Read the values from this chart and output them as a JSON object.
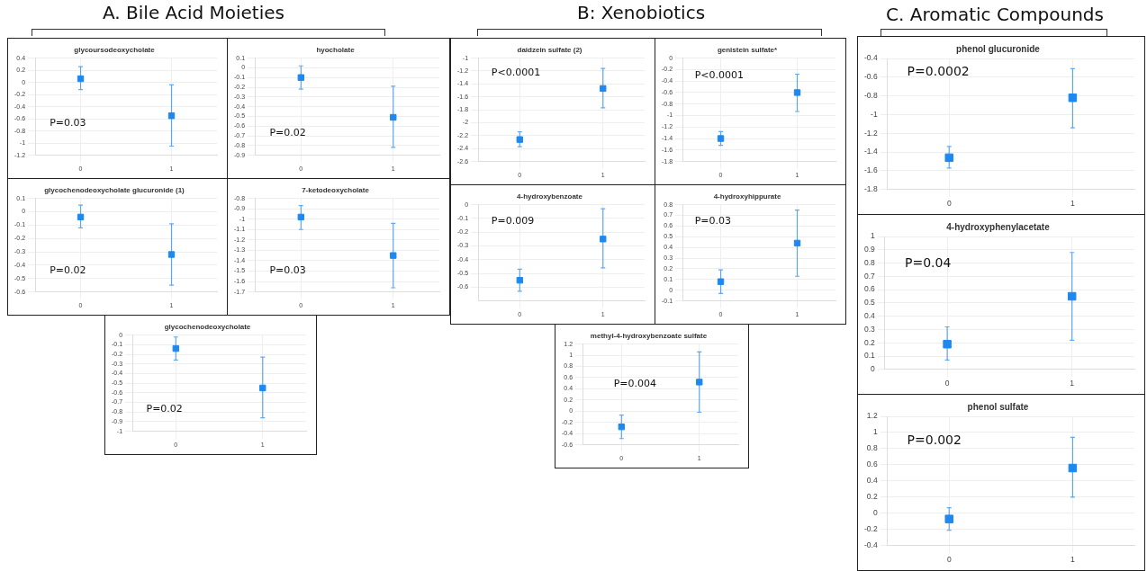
{
  "chart_data": [
    {
      "type": "scatter",
      "title": "glycoursodeoxycholate",
      "categories": [
        "0",
        "1"
      ],
      "ylim": [
        -1.2,
        0.4
      ],
      "yticks": [
        -1.2,
        -1,
        -0.8,
        -0.6,
        -0.4,
        -0.2,
        0,
        0.2,
        0.4
      ],
      "series": [
        {
          "color": "#1e88f0",
          "values": [
            0.06,
            -0.55
          ],
          "errors": [
            [
              -0.12,
              0.26
            ],
            [
              -1.05,
              -0.04
            ]
          ]
        }
      ],
      "marker": "square",
      "grid": true,
      "legend": false,
      "annotations": [
        "P=0.03",
        "A. Bile Acid Moieties"
      ]
    },
    {
      "type": "scatter",
      "title": "hyocholate",
      "categories": [
        "0",
        "1"
      ],
      "ylim": [
        -0.9,
        0.1
      ],
      "yticks": [
        -0.9,
        -0.8,
        -0.7,
        -0.6,
        -0.5,
        -0.4,
        -0.3,
        -0.2,
        -0.1,
        0,
        0.1
      ],
      "series": [
        {
          "color": "#1e88f0",
          "values": [
            -0.1,
            -0.51
          ],
          "errors": [
            [
              -0.22,
              0.02
            ],
            [
              -0.82,
              -0.19
            ]
          ]
        }
      ],
      "marker": "square",
      "grid": true,
      "legend": false,
      "annotations": [
        "P=0.02"
      ]
    },
    {
      "type": "scatter",
      "title": "glycochenodeoxycholate glucuronide (1)",
      "categories": [
        "0",
        "1"
      ],
      "ylim": [
        -0.6,
        0.1
      ],
      "yticks": [
        -0.6,
        -0.5,
        -0.4,
        -0.3,
        -0.2,
        -0.1,
        0,
        0.1
      ],
      "series": [
        {
          "color": "#1e88f0",
          "values": [
            -0.04,
            -0.32
          ],
          "errors": [
            [
              -0.12,
              0.05
            ],
            [
              -0.55,
              -0.09
            ]
          ]
        }
      ],
      "marker": "square",
      "grid": true,
      "legend": false,
      "annotations": [
        "P=0.02"
      ]
    },
    {
      "type": "scatter",
      "title": "7-ketodeoxycholate",
      "categories": [
        "0",
        "1"
      ],
      "ylim": [
        -1.7,
        -0.8
      ],
      "yticks": [
        -1.7,
        -1.6,
        -1.5,
        -1.4,
        -1.3,
        -1.2,
        -1.1,
        -1,
        -0.9,
        -0.8
      ],
      "series": [
        {
          "color": "#1e88f0",
          "values": [
            -0.98,
            -1.35
          ],
          "errors": [
            [
              -1.1,
              -0.87
            ],
            [
              -1.66,
              -1.04
            ]
          ]
        }
      ],
      "marker": "square",
      "grid": true,
      "legend": false,
      "annotations": [
        "P=0.03"
      ]
    },
    {
      "type": "scatter",
      "title": "glycochenodeoxycholate",
      "categories": [
        "0",
        "1"
      ],
      "ylim": [
        -1,
        0
      ],
      "yticks": [
        -1,
        -0.9,
        -0.8,
        -0.7,
        -0.6,
        -0.5,
        -0.4,
        -0.3,
        -0.2,
        -0.1,
        0
      ],
      "series": [
        {
          "color": "#1e88f0",
          "values": [
            -0.14,
            -0.55
          ],
          "errors": [
            [
              -0.26,
              -0.02
            ],
            [
              -0.86,
              -0.23
            ]
          ]
        }
      ],
      "marker": "square",
      "grid": true,
      "legend": false,
      "annotations": [
        "P=0.02"
      ]
    },
    {
      "type": "scatter",
      "title": "daidzein sulfate (2)",
      "categories": [
        "0",
        "1"
      ],
      "ylim": [
        -2.6,
        -1
      ],
      "yticks": [
        -2.6,
        -2.4,
        -2.2,
        -2,
        -1.8,
        -1.6,
        -1.4,
        -1.2,
        -1
      ],
      "series": [
        {
          "color": "#1e88f0",
          "values": [
            -2.26,
            -1.47
          ],
          "errors": [
            [
              -2.37,
              -2.14
            ],
            [
              -1.77,
              -1.16
            ]
          ]
        }
      ],
      "marker": "square",
      "grid": true,
      "legend": false,
      "annotations": [
        "P<0.0001",
        "B: Xenobiotics"
      ]
    },
    {
      "type": "scatter",
      "title": "genistein sulfate*",
      "categories": [
        "0",
        "1"
      ],
      "ylim": [
        -1.8,
        0
      ],
      "yticks": [
        -1.8,
        -1.6,
        -1.4,
        -1.2,
        -1,
        -0.8,
        -0.6,
        -0.4,
        -0.2,
        0
      ],
      "series": [
        {
          "color": "#1e88f0",
          "values": [
            -1.4,
            -0.6
          ],
          "errors": [
            [
              -1.52,
              -1.28
            ],
            [
              -0.93,
              -0.28
            ]
          ]
        }
      ],
      "marker": "square",
      "grid": true,
      "legend": false,
      "annotations": [
        "P<0.0001"
      ]
    },
    {
      "type": "scatter",
      "title": "4-hydroxybenzoate",
      "categories": [
        "0",
        "1"
      ],
      "ylim": [
        -0.7,
        0
      ],
      "yticks": [
        -0.6,
        -0.5,
        -0.4,
        -0.3,
        -0.2,
        -0.1,
        0
      ],
      "series": [
        {
          "color": "#1e88f0",
          "values": [
            -0.55,
            -0.25
          ],
          "errors": [
            [
              -0.63,
              -0.47
            ],
            [
              -0.46,
              -0.03
            ]
          ]
        }
      ],
      "marker": "square",
      "grid": true,
      "legend": false,
      "annotations": [
        "P=0.009"
      ]
    },
    {
      "type": "scatter",
      "title": "4-hydroxyhippurate",
      "categories": [
        "0",
        "1"
      ],
      "ylim": [
        -0.1,
        0.8
      ],
      "yticks": [
        -0.1,
        0,
        0.1,
        0.2,
        0.3,
        0.4,
        0.5,
        0.6,
        0.7,
        0.8
      ],
      "series": [
        {
          "color": "#1e88f0",
          "values": [
            0.08,
            0.44
          ],
          "errors": [
            [
              -0.03,
              0.19
            ],
            [
              0.13,
              0.75
            ]
          ]
        }
      ],
      "marker": "square",
      "grid": true,
      "legend": false,
      "annotations": [
        "P=0.03"
      ]
    },
    {
      "type": "scatter",
      "title": "methyl-4-hydroxybenzoate sulfate",
      "categories": [
        "0",
        "1"
      ],
      "ylim": [
        -0.6,
        1.2
      ],
      "yticks": [
        -0.6,
        -0.4,
        -0.2,
        0,
        0.2,
        0.4,
        0.6,
        0.8,
        1,
        1.2
      ],
      "series": [
        {
          "color": "#1e88f0",
          "values": [
            -0.28,
            0.52
          ],
          "errors": [
            [
              -0.49,
              -0.07
            ],
            [
              -0.02,
              1.06
            ]
          ]
        }
      ],
      "marker": "square",
      "grid": true,
      "legend": false,
      "annotations": [
        "P=0.004"
      ]
    },
    {
      "type": "scatter",
      "title": "phenol glucuronide",
      "categories": [
        "0",
        "1"
      ],
      "ylim": [
        -1.8,
        -0.4
      ],
      "yticks": [
        -1.8,
        -1.6,
        -1.4,
        -1.2,
        -1,
        -0.8,
        -0.6,
        -0.4
      ],
      "series": [
        {
          "color": "#1e88f0",
          "values": [
            -1.46,
            -0.82
          ],
          "errors": [
            [
              -1.57,
              -1.34
            ],
            [
              -1.14,
              -0.51
            ]
          ]
        }
      ],
      "marker": "square",
      "grid": true,
      "legend": false,
      "annotations": [
        "P=0.0002",
        "C. Aromatic Compounds"
      ]
    },
    {
      "type": "scatter",
      "title": "4-hydroxyphenylacetate",
      "categories": [
        "0",
        "1"
      ],
      "ylim": [
        0,
        1
      ],
      "yticks": [
        0,
        0.1,
        0.2,
        0.3,
        0.4,
        0.5,
        0.6,
        0.7,
        0.8,
        0.9,
        1
      ],
      "series": [
        {
          "color": "#1e88f0",
          "values": [
            0.19,
            0.55
          ],
          "errors": [
            [
              0.07,
              0.32
            ],
            [
              0.22,
              0.88
            ]
          ]
        }
      ],
      "marker": "square",
      "grid": true,
      "legend": false,
      "annotations": [
        "P=0.04"
      ]
    },
    {
      "type": "scatter",
      "title": "phenol sulfate",
      "categories": [
        "0",
        "1"
      ],
      "ylim": [
        -0.4,
        1.2
      ],
      "yticks": [
        -0.4,
        -0.2,
        0,
        0.2,
        0.4,
        0.6,
        0.8,
        1,
        1.2
      ],
      "series": [
        {
          "color": "#1e88f0",
          "values": [
            -0.07,
            0.56
          ],
          "errors": [
            [
              -0.21,
              0.07
            ],
            [
              0.2,
              0.94
            ]
          ]
        }
      ],
      "marker": "square",
      "grid": true,
      "legend": false,
      "annotations": [
        "P=0.002"
      ]
    }
  ]
}
